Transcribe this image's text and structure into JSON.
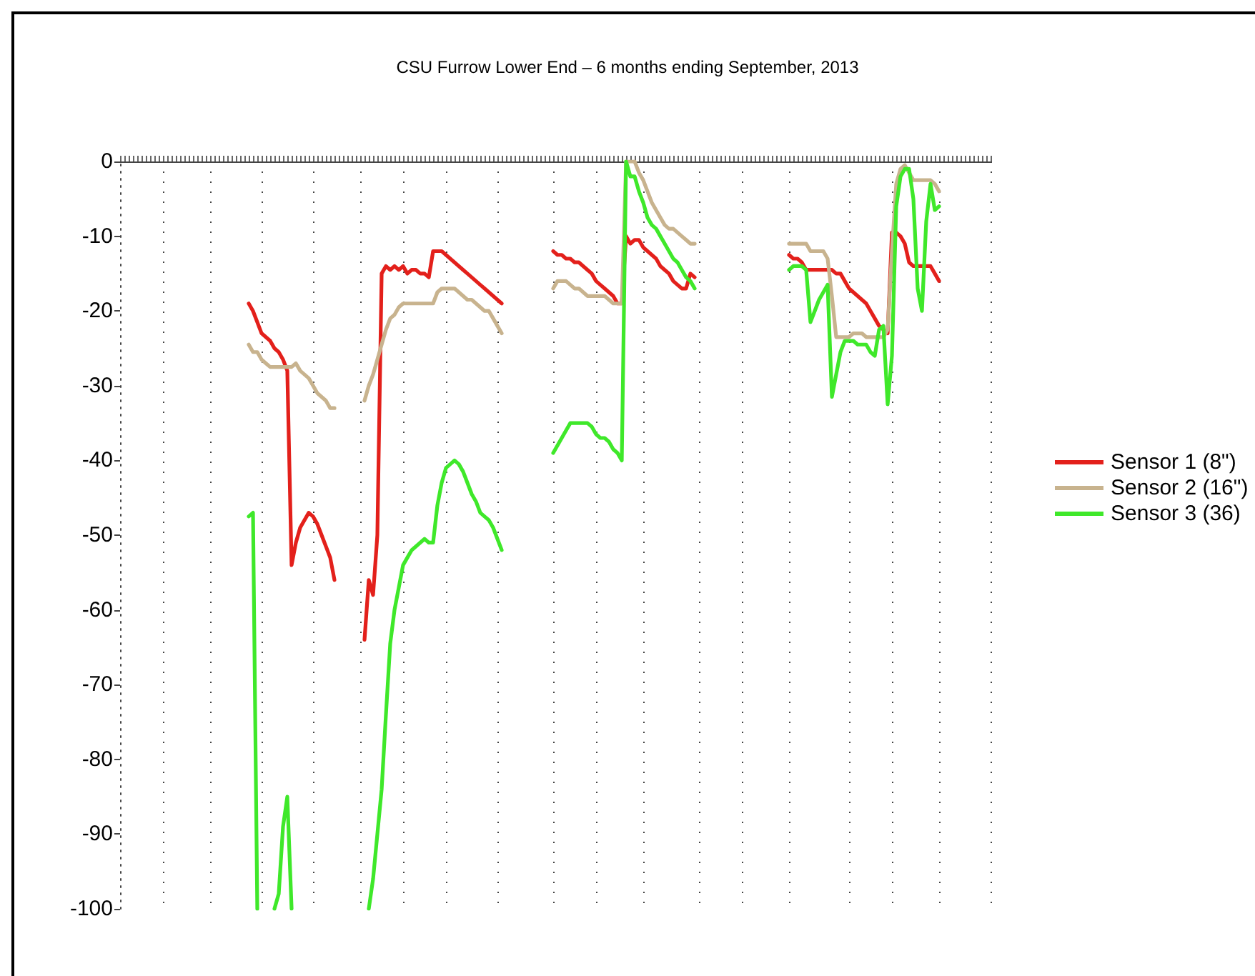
{
  "chart_data": {
    "type": "line",
    "title": "CSU Furrow Lower End – 6 months ending September, 2013",
    "categories": [
      null,
      null,
      null,
      null,
      null,
      null,
      null,
      null,
      null,
      null,
      null,
      null,
      null,
      null,
      null,
      null,
      null,
      null,
      null,
      null,
      null,
      null,
      null,
      null,
      null,
      null,
      null,
      null,
      null,
      null,
      null,
      null,
      null,
      null,
      null,
      null,
      null,
      null,
      null,
      null,
      null,
      null,
      null,
      null,
      null,
      null,
      null,
      null,
      null,
      null,
      null,
      null,
      null,
      null,
      null,
      null,
      null,
      null,
      null,
      null,
      null,
      null,
      null,
      null,
      null,
      null,
      null,
      null,
      null,
      null,
      null,
      null,
      null,
      null,
      null,
      null,
      null,
      null,
      null,
      null,
      null,
      null,
      null,
      null,
      null,
      null,
      null,
      null,
      null,
      null,
      null,
      null,
      null,
      null,
      null,
      null,
      null,
      null,
      null,
      null,
      null,
      null,
      null,
      null,
      null,
      null,
      null,
      null,
      null,
      null,
      null,
      null,
      null,
      null,
      null,
      null,
      null,
      null,
      null,
      null,
      null,
      null,
      null,
      null,
      null,
      null,
      null,
      null,
      null,
      null,
      null,
      null,
      null,
      null,
      null,
      null,
      null,
      null,
      null,
      null,
      null,
      null,
      null,
      null,
      null,
      null,
      null,
      null,
      null,
      null,
      null,
      null,
      null,
      null,
      null,
      null,
      null,
      null,
      null,
      null,
      null,
      null,
      null,
      null,
      null,
      null,
      null,
      null,
      null,
      null,
      null,
      null,
      null,
      null,
      null,
      null,
      null,
      null,
      null,
      null,
      null,
      null,
      null,
      null,
      null,
      null,
      null,
      null,
      null,
      null,
      null,
      null,
      null,
      null,
      null,
      null,
      null,
      null,
      null,
      null,
      null,
      null,
      null,
      null
    ],
    "series": [
      {
        "name": "Sensor 1 (8\")",
        "color": "#e3201b",
        "values": [
          null,
          null,
          null,
          null,
          null,
          null,
          null,
          null,
          null,
          null,
          null,
          null,
          null,
          null,
          null,
          null,
          null,
          null,
          null,
          null,
          null,
          null,
          null,
          null,
          null,
          null,
          null,
          null,
          null,
          null,
          -19,
          -20,
          -21.5,
          -23,
          -23.5,
          -24,
          -25,
          -25.5,
          -26.5,
          -28,
          -54,
          -51,
          -49,
          -48,
          -47,
          -47.5,
          -48.5,
          -50,
          -51.5,
          -53,
          -56,
          null,
          null,
          null,
          null,
          null,
          null,
          -64,
          -56,
          -58,
          -50,
          -15,
          -14,
          -14.5,
          -14,
          -14.5,
          -14,
          -15,
          -14.5,
          -14.5,
          -15,
          -15,
          -15.5,
          -12,
          -12,
          -12,
          -12.5,
          -13,
          -13.5,
          -14,
          -14.5,
          -15,
          -15.5,
          -16,
          -16.5,
          -17,
          -17.5,
          -18,
          -18.5,
          -19,
          null,
          null,
          null,
          null,
          null,
          null,
          null,
          null,
          null,
          null,
          null,
          -12,
          -12.5,
          -12.5,
          -13,
          -13,
          -13.5,
          -13.5,
          -14,
          -14.5,
          -15,
          -16,
          -16.5,
          -17,
          -17.5,
          -18,
          -19,
          -19,
          -10,
          -11,
          -10.5,
          -10.5,
          -11.5,
          -12,
          -12.5,
          -13,
          -14,
          -14.5,
          -15,
          -16,
          -16.5,
          -17,
          -17,
          -15,
          -15.5,
          null,
          null,
          null,
          null,
          null,
          null,
          null,
          null,
          null,
          null,
          null,
          null,
          null,
          null,
          null,
          null,
          null,
          null,
          null,
          null,
          null,
          -12.5,
          -13,
          -13,
          -13.5,
          -14.5,
          -14.5,
          -14.5,
          -14.5,
          -14.5,
          -14.5,
          -14.5,
          -15,
          -15,
          -16,
          -17,
          -17.5,
          -18,
          -18.5,
          -19,
          -20,
          -21,
          -22,
          -22.5,
          -23,
          -9.5,
          -9.5,
          -10,
          -11,
          -13.5,
          -14,
          -14,
          -14,
          -14,
          -14,
          -15,
          -16,
          null,
          null,
          null,
          null,
          null,
          null,
          null,
          null,
          null,
          null,
          null,
          null
        ]
      },
      {
        "name": "Sensor 2 (16\")",
        "color": "#c8b38e",
        "values": [
          null,
          null,
          null,
          null,
          null,
          null,
          null,
          null,
          null,
          null,
          null,
          null,
          null,
          null,
          null,
          null,
          null,
          null,
          null,
          null,
          null,
          null,
          null,
          null,
          null,
          null,
          null,
          null,
          null,
          null,
          -24.5,
          -25.5,
          -25.5,
          -26.5,
          -27,
          -27.5,
          -27.5,
          -27.5,
          -27.5,
          -27.5,
          -27.5,
          -27,
          -28,
          -28.5,
          -29,
          -30,
          -31,
          -31.5,
          -32,
          -33,
          -33,
          null,
          null,
          null,
          null,
          null,
          null,
          -32,
          -30,
          -28.5,
          -26.5,
          -24.5,
          -22.5,
          -21,
          -20.5,
          -19.5,
          -19,
          -19,
          -19,
          -19,
          -19,
          -19,
          -19,
          -19,
          -17.5,
          -17,
          -17,
          -17,
          -17,
          -17.5,
          -18,
          -18.5,
          -18.5,
          -19,
          -19.5,
          -20,
          -20,
          -21,
          -22,
          -23,
          null,
          null,
          null,
          null,
          null,
          null,
          null,
          null,
          null,
          null,
          null,
          -17,
          -16,
          -16,
          -16,
          -16.5,
          -17,
          -17,
          -17.5,
          -18,
          -18,
          -18,
          -18,
          -18,
          -18.5,
          -19,
          -19,
          -19,
          0,
          0,
          0,
          -1.5,
          -2.5,
          -4,
          -5.5,
          -6.5,
          -7.5,
          -8.5,
          -9,
          -9,
          -9.5,
          -10,
          -10.5,
          -11,
          -11,
          null,
          null,
          null,
          null,
          null,
          null,
          null,
          null,
          null,
          null,
          null,
          null,
          null,
          null,
          null,
          null,
          null,
          null,
          null,
          null,
          null,
          -11,
          -11,
          -11,
          -11,
          -11,
          -12,
          -12,
          -12,
          -12,
          -13,
          -18,
          -23.5,
          -23.5,
          -23.5,
          -23.5,
          -23,
          -23,
          -23,
          -23.5,
          -23.5,
          -23.5,
          -23.5,
          -23.5,
          -22.5,
          -12,
          -3,
          -1,
          -0.5,
          -1.5,
          -2.5,
          -2.5,
          -2.5,
          -2.5,
          -2.5,
          -3,
          -4,
          null,
          null,
          null,
          null,
          null,
          null,
          null,
          null,
          null,
          null,
          null,
          null
        ]
      },
      {
        "name": "Sensor 3 (36)",
        "color": "#3fe82a",
        "values": [
          null,
          null,
          null,
          null,
          null,
          null,
          null,
          null,
          null,
          null,
          null,
          null,
          null,
          null,
          null,
          null,
          null,
          null,
          null,
          null,
          null,
          null,
          null,
          null,
          null,
          null,
          null,
          null,
          null,
          null,
          -47.5,
          -47,
          -100,
          null,
          null,
          null,
          -100,
          -98,
          -89,
          -85,
          -100,
          null,
          null,
          null,
          null,
          null,
          null,
          null,
          null,
          null,
          null,
          null,
          null,
          null,
          null,
          null,
          null,
          null,
          -100,
          -96,
          -90,
          -84,
          -74,
          -64.5,
          -60,
          -57,
          -54,
          -53,
          -52,
          -51.5,
          -51,
          -50.5,
          -51,
          -51,
          -46,
          -43,
          -41,
          -40.5,
          -40,
          -40.5,
          -41.5,
          -43,
          -44.5,
          -45.5,
          -47,
          -47.5,
          -48,
          -49,
          -50.5,
          -52,
          null,
          null,
          null,
          null,
          null,
          null,
          null,
          null,
          null,
          null,
          null,
          -39,
          -38,
          -37,
          -36,
          -35,
          -35,
          -35,
          -35,
          -35,
          -35.5,
          -36.5,
          -37,
          -37,
          -37.5,
          -38.5,
          -39,
          -40,
          0,
          -2,
          -2,
          -4,
          -5.5,
          -7.5,
          -8.5,
          -9,
          -10,
          -11,
          -12,
          -13,
          -13.5,
          -14.5,
          -15.5,
          -16,
          -17,
          null,
          null,
          null,
          null,
          null,
          null,
          null,
          null,
          null,
          null,
          null,
          null,
          null,
          null,
          null,
          null,
          null,
          null,
          null,
          null,
          null,
          -14.5,
          -14,
          -14,
          -14,
          -14.5,
          -21.5,
          -20,
          -18.5,
          -17.5,
          -16.5,
          -31.5,
          -28.5,
          -25.5,
          -24,
          -24,
          -24,
          -24.5,
          -24.5,
          -24.5,
          -25.5,
          -26,
          -22.5,
          -22,
          -32.5,
          -26,
          -6,
          -2,
          -1,
          -1,
          -5,
          -17,
          -20,
          -8,
          -3,
          -6.5,
          -6,
          null,
          null,
          null,
          null,
          null,
          null,
          null,
          null,
          null,
          null,
          null,
          null
        ]
      }
    ],
    "ylim": [
      -100,
      0
    ],
    "yticks": [
      -100,
      -90,
      -80,
      -70,
      -60,
      -50,
      -40,
      -30,
      -20,
      -10,
      0
    ],
    "grid": "x",
    "legend": "right",
    "tick_labels": "y",
    "marker": "none",
    "line_style": "solid"
  }
}
